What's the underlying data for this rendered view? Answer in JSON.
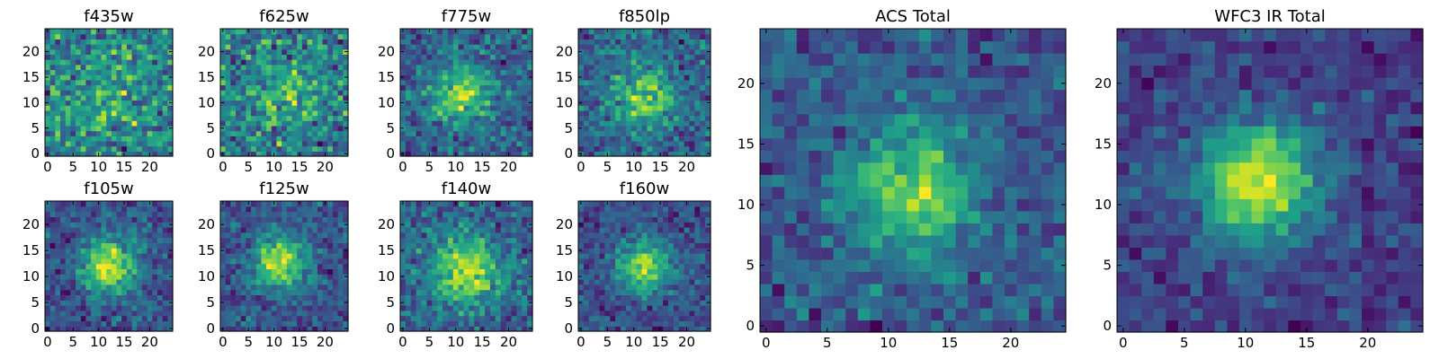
{
  "colors": {
    "colormap": "viridis",
    "background": "#ffffff",
    "frame": "#000000"
  },
  "chart_data": [
    {
      "type": "heatmap",
      "title": "f435w",
      "grid": false,
      "xlim": [
        -0.5,
        24.5
      ],
      "ylim": [
        -0.5,
        24.5
      ],
      "xticks": [
        0,
        5,
        10,
        15,
        20
      ],
      "yticks": [
        0,
        5,
        10,
        15,
        20
      ],
      "shape": [
        25,
        25
      ],
      "blob": {
        "center": [
          12,
          12
        ],
        "sigma": 6,
        "amplitude": 0.1
      },
      "base": 0.62,
      "noise": 0.3,
      "seed": 11
    },
    {
      "type": "heatmap",
      "title": "f625w",
      "grid": false,
      "xlim": [
        -0.5,
        24.5
      ],
      "ylim": [
        -0.5,
        24.5
      ],
      "xticks": [
        0,
        5,
        10,
        15,
        20
      ],
      "yticks": [
        0,
        5,
        10,
        15,
        20
      ],
      "shape": [
        25,
        25
      ],
      "blob": {
        "center": [
          13,
          12
        ],
        "sigma": 5,
        "amplitude": 0.15
      },
      "base": 0.58,
      "noise": 0.32,
      "seed": 23
    },
    {
      "type": "heatmap",
      "title": "f775w",
      "grid": false,
      "xlim": [
        -0.5,
        24.5
      ],
      "ylim": [
        -0.5,
        24.5
      ],
      "xticks": [
        0,
        5,
        10,
        15,
        20
      ],
      "yticks": [
        0,
        5,
        10,
        15,
        20
      ],
      "shape": [
        25,
        25
      ],
      "blob": {
        "center": [
          11,
          12
        ],
        "sigma": 4,
        "amplitude": 0.35
      },
      "base": 0.48,
      "noise": 0.26,
      "seed": 37
    },
    {
      "type": "heatmap",
      "title": "f850lp",
      "grid": false,
      "xlim": [
        -0.5,
        24.5
      ],
      "ylim": [
        -0.5,
        24.5
      ],
      "xticks": [
        0,
        5,
        10,
        15,
        20
      ],
      "yticks": [
        0,
        5,
        10,
        15,
        20
      ],
      "shape": [
        25,
        25
      ],
      "blob": {
        "center": [
          12,
          11
        ],
        "sigma": 4,
        "amplitude": 0.35
      },
      "base": 0.46,
      "noise": 0.28,
      "seed": 41
    },
    {
      "type": "heatmap",
      "title": "f105w",
      "grid": false,
      "xlim": [
        -0.5,
        24.5
      ],
      "ylim": [
        -0.5,
        24.5
      ],
      "xticks": [
        0,
        5,
        10,
        15,
        20
      ],
      "yticks": [
        0,
        5,
        10,
        15,
        20
      ],
      "shape": [
        25,
        25
      ],
      "blob": {
        "center": [
          12,
          12
        ],
        "sigma": 3.5,
        "amplitude": 0.5
      },
      "base": 0.42,
      "noise": 0.22,
      "seed": 53
    },
    {
      "type": "heatmap",
      "title": "f125w",
      "grid": false,
      "xlim": [
        -0.5,
        24.5
      ],
      "ylim": [
        -0.5,
        24.5
      ],
      "xticks": [
        0,
        5,
        10,
        15,
        20
      ],
      "yticks": [
        0,
        5,
        10,
        15,
        20
      ],
      "shape": [
        25,
        25
      ],
      "blob": {
        "center": [
          11,
          13
        ],
        "sigma": 3.5,
        "amplitude": 0.5
      },
      "base": 0.42,
      "noise": 0.22,
      "seed": 67
    },
    {
      "type": "heatmap",
      "title": "f140w",
      "grid": false,
      "xlim": [
        -0.5,
        24.5
      ],
      "ylim": [
        -0.5,
        24.5
      ],
      "xticks": [
        0,
        5,
        10,
        15,
        20
      ],
      "yticks": [
        0,
        5,
        10,
        15,
        20
      ],
      "shape": [
        25,
        25
      ],
      "blob": {
        "center": [
          12,
          11
        ],
        "sigma": 4.5,
        "amplitude": 0.35
      },
      "base": 0.48,
      "noise": 0.22,
      "seed": 79
    },
    {
      "type": "heatmap",
      "title": "f160w",
      "grid": false,
      "xlim": [
        -0.5,
        24.5
      ],
      "ylim": [
        -0.5,
        24.5
      ],
      "xticks": [
        0,
        5,
        10,
        15,
        20
      ],
      "yticks": [
        0,
        5,
        10,
        15,
        20
      ],
      "shape": [
        25,
        25
      ],
      "blob": {
        "center": [
          12,
          12
        ],
        "sigma": 3.5,
        "amplitude": 0.5
      },
      "base": 0.42,
      "noise": 0.24,
      "seed": 83
    },
    {
      "type": "heatmap",
      "title": "ACS Total",
      "grid": false,
      "xlim": [
        -0.5,
        24.5
      ],
      "ylim": [
        -0.5,
        24.5
      ],
      "xticks": [
        0,
        5,
        10,
        15,
        20
      ],
      "yticks": [
        0,
        5,
        10,
        15,
        20
      ],
      "shape": [
        25,
        25
      ],
      "blob": {
        "center": [
          12,
          11
        ],
        "sigma": 3.5,
        "amplitude": 0.42
      },
      "base": 0.52,
      "noise": 0.22,
      "seed": 97
    },
    {
      "type": "heatmap",
      "title": "WFC3 IR Total",
      "grid": false,
      "xlim": [
        -0.5,
        24.5
      ],
      "ylim": [
        -0.5,
        24.5
      ],
      "xticks": [
        0,
        5,
        10,
        15,
        20
      ],
      "yticks": [
        0,
        5,
        10,
        15,
        20
      ],
      "shape": [
        25,
        25
      ],
      "blob": {
        "center": [
          11,
          12
        ],
        "sigma": 3.5,
        "amplitude": 0.5
      },
      "base": 0.45,
      "noise": 0.15,
      "seed": 101
    }
  ]
}
